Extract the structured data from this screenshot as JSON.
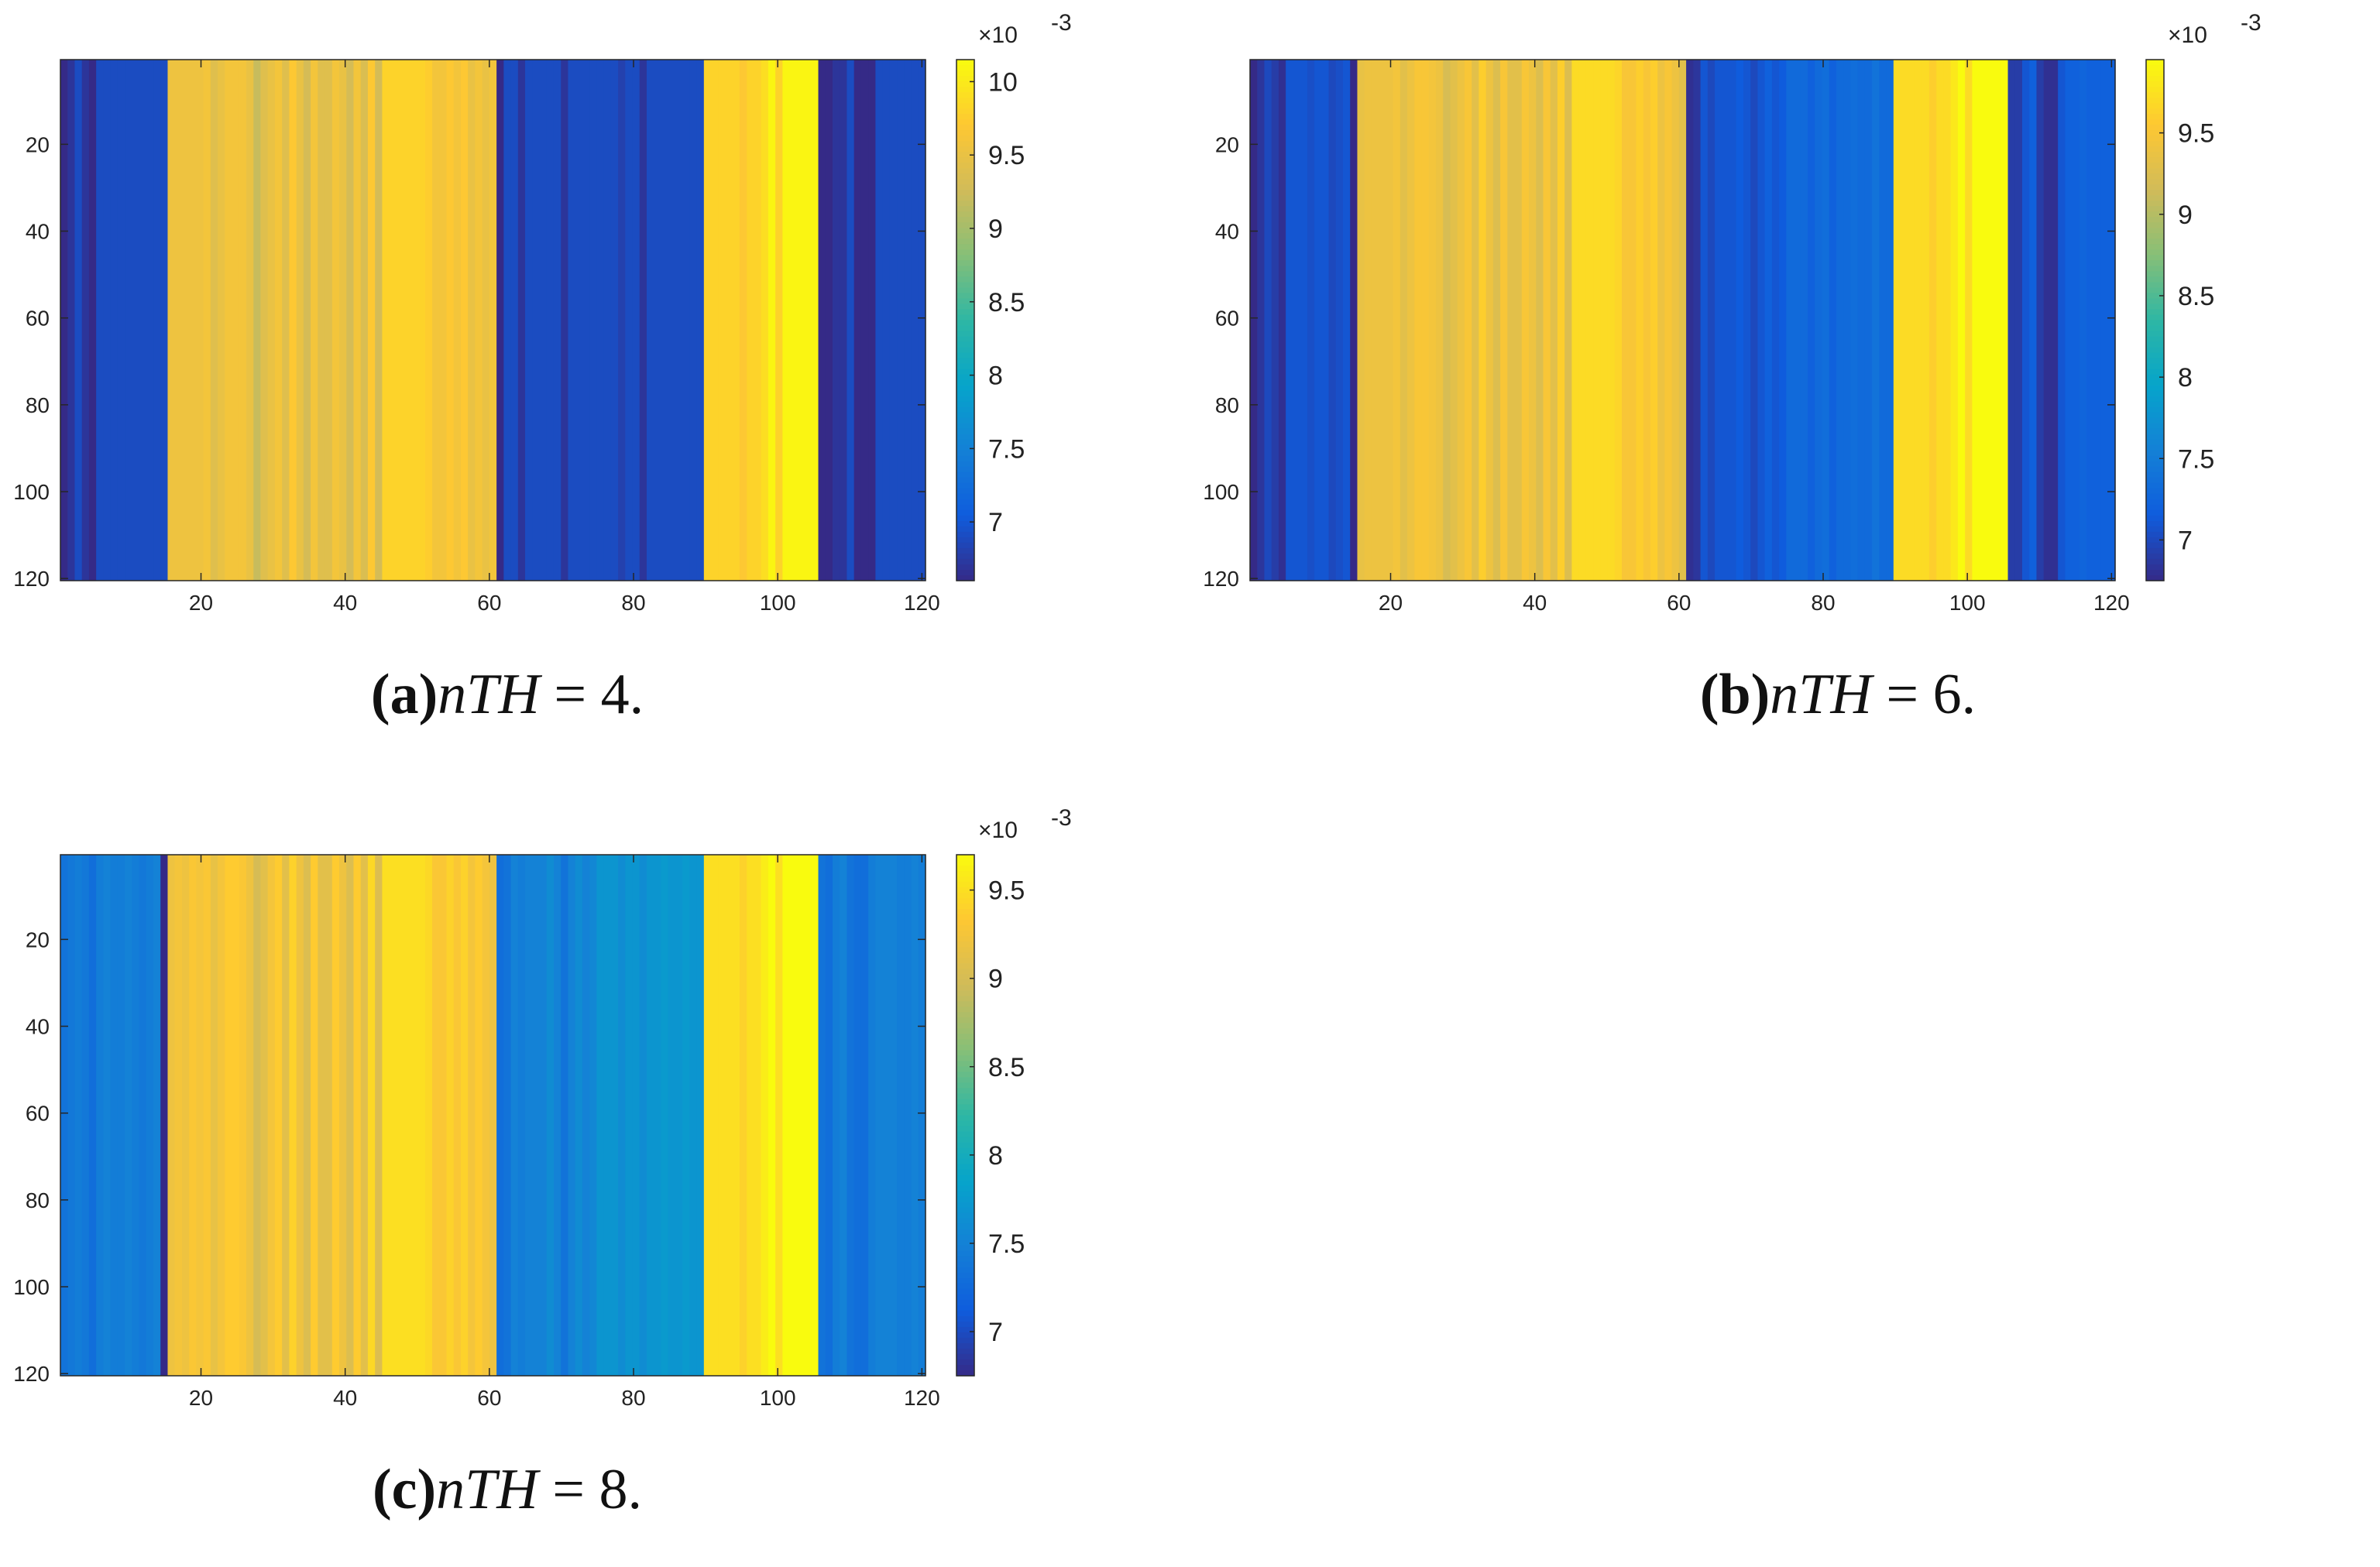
{
  "chart_data": [
    {
      "type": "heatmap",
      "panel_label": "(a)",
      "caption_text": "nTH = 4.",
      "x_ticks": [
        20,
        40,
        60,
        80,
        100,
        120
      ],
      "y_ticks": [
        20,
        40,
        60,
        80,
        100,
        120
      ],
      "xlim": [
        0.5,
        120.5
      ],
      "ylim": [
        0.5,
        120.5
      ],
      "colorbar": {
        "exponent_label": "×10",
        "exponent_power": "-3",
        "ticks": [
          "7",
          "7.5",
          "8",
          "8.5",
          "9",
          "9.5",
          "10"
        ],
        "tick_values": [
          7,
          7.5,
          8,
          8.5,
          9,
          9.5,
          10
        ],
        "clim": [
          6.6,
          10.15
        ]
      },
      "column_values": [
        6.6,
        6.7,
        6.9,
        6.7,
        6.6,
        6.9,
        6.9,
        6.9,
        6.9,
        6.9,
        6.9,
        6.9,
        6.9,
        6.9,
        6.9,
        9.55,
        9.55,
        9.55,
        9.55,
        9.55,
        9.6,
        9.4,
        9.5,
        9.6,
        9.6,
        9.6,
        9.5,
        9.2,
        9.4,
        9.5,
        9.6,
        9.4,
        9.7,
        9.5,
        9.3,
        9.6,
        9.4,
        9.4,
        9.6,
        9.5,
        9.3,
        9.6,
        9.35,
        9.7,
        9.3,
        9.8,
        9.8,
        9.8,
        9.8,
        9.8,
        9.8,
        9.75,
        9.6,
        9.6,
        9.7,
        9.6,
        9.7,
        9.5,
        9.6,
        9.5,
        9.6,
        6.6,
        6.9,
        6.9,
        6.7,
        6.9,
        6.9,
        6.9,
        6.9,
        6.9,
        6.7,
        6.9,
        6.9,
        6.9,
        6.9,
        6.9,
        6.9,
        6.9,
        6.8,
        6.9,
        6.9,
        6.7,
        6.9,
        6.9,
        6.9,
        6.9,
        6.9,
        6.9,
        6.9,
        6.9,
        9.8,
        9.8,
        9.8,
        9.8,
        9.8,
        9.7,
        9.8,
        9.8,
        9.9,
        10.1,
        9.8,
        10.1,
        10.1,
        10.1,
        10.1,
        10.1,
        6.6,
        6.6,
        6.7,
        6.7,
        6.9,
        6.6,
        6.6,
        6.6,
        6.9,
        6.9,
        6.9,
        6.9,
        6.9,
        6.9,
        6.9
      ]
    },
    {
      "type": "heatmap",
      "panel_label": "(b)",
      "caption_text": "nTH = 6.",
      "x_ticks": [
        20,
        40,
        60,
        80,
        100,
        120
      ],
      "y_ticks": [
        20,
        40,
        60,
        80,
        100,
        120
      ],
      "xlim": [
        0.5,
        120.5
      ],
      "ylim": [
        0.5,
        120.5
      ],
      "colorbar": {
        "exponent_label": "×10",
        "exponent_power": "-3",
        "ticks": [
          "7",
          "7.5",
          "8",
          "8.5",
          "9",
          "9.5"
        ],
        "tick_values": [
          7,
          7.5,
          8,
          8.5,
          9,
          9.5
        ],
        "clim": [
          6.75,
          9.95
        ]
      },
      "column_values": [
        6.75,
        6.85,
        7.0,
        6.9,
        6.8,
        7.1,
        7.1,
        7.1,
        7.05,
        7.1,
        7.1,
        7.0,
        7.05,
        7.1,
        6.75,
        9.35,
        9.4,
        9.4,
        9.4,
        9.4,
        9.45,
        9.3,
        9.4,
        9.5,
        9.5,
        9.45,
        9.4,
        9.2,
        9.3,
        9.4,
        9.5,
        9.3,
        9.6,
        9.4,
        9.25,
        9.5,
        9.3,
        9.3,
        9.5,
        9.4,
        9.25,
        9.5,
        9.3,
        9.6,
        9.25,
        9.7,
        9.7,
        9.7,
        9.7,
        9.7,
        9.7,
        9.65,
        9.5,
        9.5,
        9.6,
        9.5,
        9.6,
        9.4,
        9.5,
        9.4,
        9.3,
        6.8,
        6.85,
        7.1,
        7.0,
        7.1,
        7.1,
        7.1,
        7.15,
        7.1,
        7.0,
        7.1,
        7.2,
        7.1,
        7.15,
        7.3,
        7.3,
        7.3,
        7.2,
        7.3,
        7.35,
        7.2,
        7.3,
        7.3,
        7.35,
        7.3,
        7.3,
        7.4,
        7.3,
        7.3,
        9.7,
        9.7,
        9.7,
        9.7,
        9.7,
        9.6,
        9.7,
        9.7,
        9.8,
        9.95,
        9.7,
        9.95,
        9.95,
        9.95,
        9.95,
        9.95,
        6.9,
        6.9,
        7.1,
        7.2,
        6.9,
        6.8,
        6.8,
        7.1,
        7.2,
        7.2,
        7.25,
        7.2,
        7.2,
        7.2,
        7.2
      ]
    },
    {
      "type": "heatmap",
      "panel_label": "(c)",
      "caption_text": "nTH = 8.",
      "x_ticks": [
        20,
        40,
        60,
        80,
        100,
        120
      ],
      "y_ticks": [
        20,
        40,
        60,
        80,
        100,
        120
      ],
      "xlim": [
        0.5,
        120.5
      ],
      "ylim": [
        0.5,
        120.5
      ],
      "colorbar": {
        "exponent_label": "×10",
        "exponent_power": "-3",
        "ticks": [
          "7",
          "7.5",
          "8",
          "8.5",
          "9",
          "9.5"
        ],
        "tick_values": [
          7,
          7.5,
          8,
          8.5,
          9,
          9.5
        ],
        "clim": [
          6.75,
          9.7
        ]
      },
      "column_values": [
        7.35,
        7.4,
        7.45,
        7.4,
        7.3,
        7.45,
        7.5,
        7.45,
        7.45,
        7.5,
        7.45,
        7.4,
        7.45,
        7.5,
        6.75,
        9.2,
        9.25,
        9.2,
        9.3,
        9.25,
        9.3,
        9.15,
        9.25,
        9.35,
        9.35,
        9.3,
        9.2,
        9.0,
        9.1,
        9.25,
        9.35,
        9.1,
        9.4,
        9.2,
        9.05,
        9.35,
        9.1,
        9.1,
        9.35,
        9.2,
        9.05,
        9.35,
        9.1,
        9.45,
        9.05,
        9.5,
        9.5,
        9.5,
        9.5,
        9.5,
        9.5,
        9.45,
        9.3,
        9.3,
        9.4,
        9.3,
        9.4,
        9.25,
        9.35,
        9.25,
        9.2,
        7.3,
        7.35,
        7.5,
        7.45,
        7.5,
        7.5,
        7.5,
        7.6,
        7.5,
        7.35,
        7.5,
        7.6,
        7.5,
        7.55,
        7.7,
        7.7,
        7.7,
        7.6,
        7.7,
        7.7,
        7.6,
        7.7,
        7.7,
        7.75,
        7.7,
        7.7,
        7.75,
        7.7,
        7.7,
        9.5,
        9.5,
        9.5,
        9.5,
        9.5,
        9.4,
        9.5,
        9.5,
        9.6,
        9.7,
        9.5,
        9.7,
        9.7,
        9.7,
        9.7,
        9.7,
        7.35,
        7.3,
        7.45,
        7.5,
        7.35,
        7.3,
        7.3,
        7.45,
        7.5,
        7.5,
        7.5,
        7.45,
        7.45,
        7.5,
        7.45
      ]
    }
  ],
  "panels": [
    {
      "label": "(a)",
      "math": "nTH",
      "rest": " = 4."
    },
    {
      "label": "(b)",
      "math": "nTH",
      "rest": " = 6."
    },
    {
      "label": "(c)",
      "math": "nTH",
      "rest": " = 8."
    }
  ],
  "colors": {
    "parula": [
      "#352a87",
      "#0f5cdd",
      "#1481d6",
      "#06a4ca",
      "#2eb7a4",
      "#87bf77",
      "#d1bb59",
      "#fec832",
      "#f9fb0e"
    ],
    "axis": "#262626",
    "background": "#ffffff"
  }
}
